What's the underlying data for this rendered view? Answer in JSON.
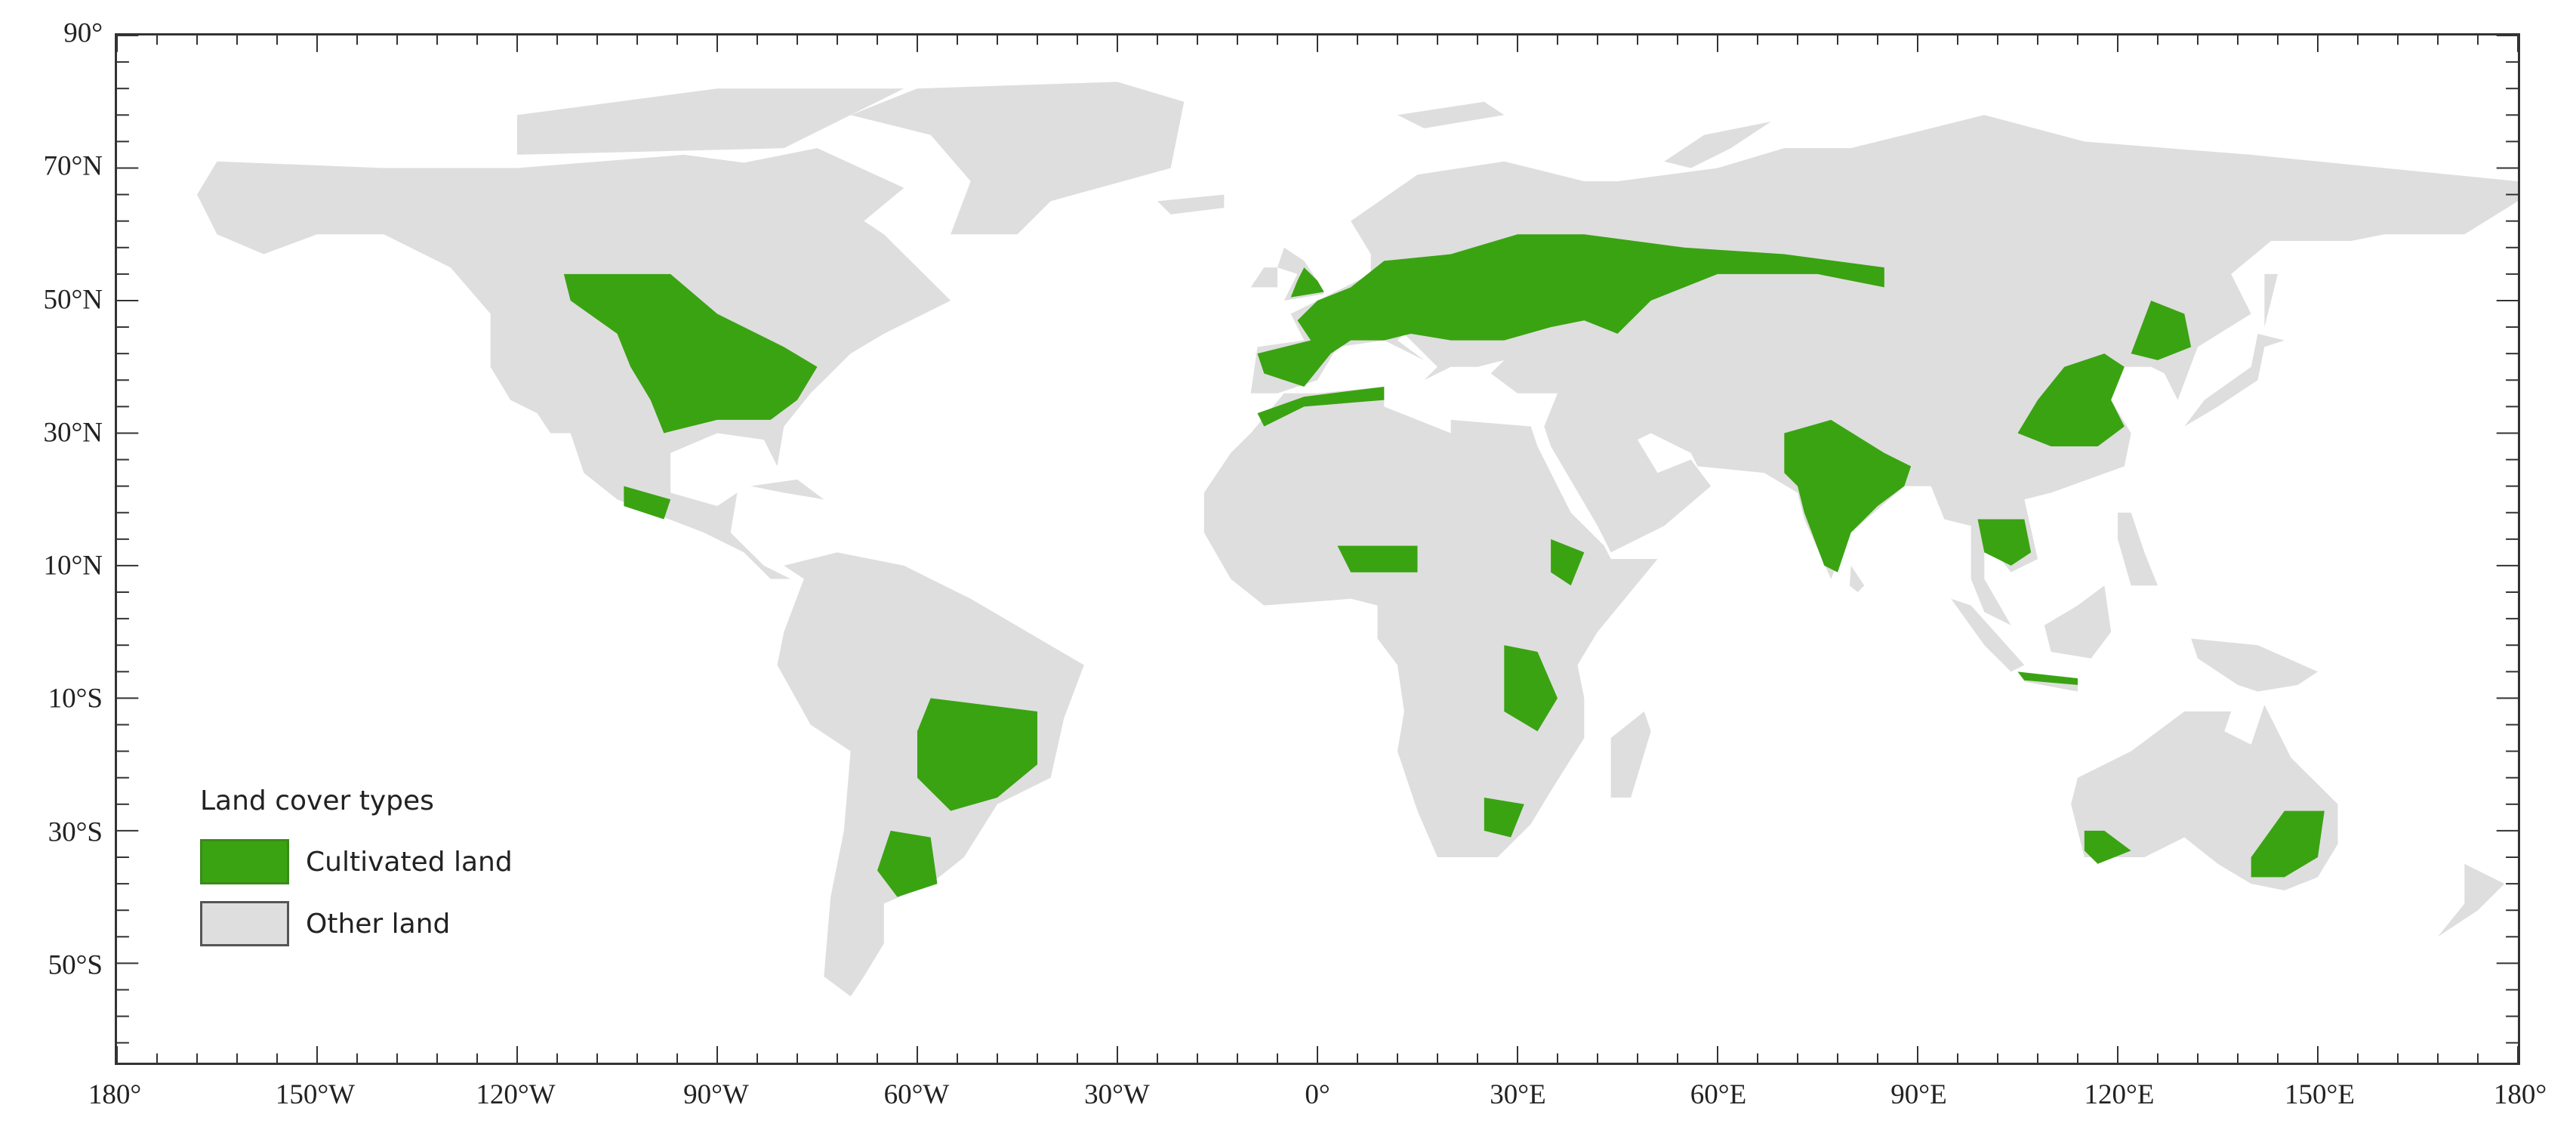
{
  "map": {
    "projection": "equirectangular",
    "lon_range": [
      -180,
      180
    ],
    "lat_range": [
      -65,
      90
    ],
    "lon_ticks": [
      {
        "value": -180,
        "label": "180°"
      },
      {
        "value": -150,
        "label": "150°W"
      },
      {
        "value": -120,
        "label": "120°W"
      },
      {
        "value": -90,
        "label": "90°W"
      },
      {
        "value": -60,
        "label": "60°W"
      },
      {
        "value": -30,
        "label": "30°W"
      },
      {
        "value": 0,
        "label": "0°"
      },
      {
        "value": 30,
        "label": "30°E"
      },
      {
        "value": 60,
        "label": "60°E"
      },
      {
        "value": 90,
        "label": "90°E"
      },
      {
        "value": 120,
        "label": "120°E"
      },
      {
        "value": 150,
        "label": "150°E"
      },
      {
        "value": 180,
        "label": "180°"
      }
    ],
    "lat_ticks": [
      {
        "value": 90,
        "label": "90°"
      },
      {
        "value": 70,
        "label": "70°N"
      },
      {
        "value": 50,
        "label": "50°N"
      },
      {
        "value": 30,
        "label": "30°N"
      },
      {
        "value": 10,
        "label": "10°N"
      },
      {
        "value": -10,
        "label": "10°S"
      },
      {
        "value": -30,
        "label": "30°S"
      },
      {
        "value": -50,
        "label": "50°S"
      }
    ],
    "colors": {
      "cultivated": "#3aa312",
      "other": "#dedede",
      "water": "#ffffff"
    }
  },
  "legend": {
    "title": "Land cover types",
    "items": [
      {
        "label": "Cultivated land",
        "color": "#3aa312"
      },
      {
        "label": "Other land",
        "color": "#dedede"
      }
    ]
  }
}
